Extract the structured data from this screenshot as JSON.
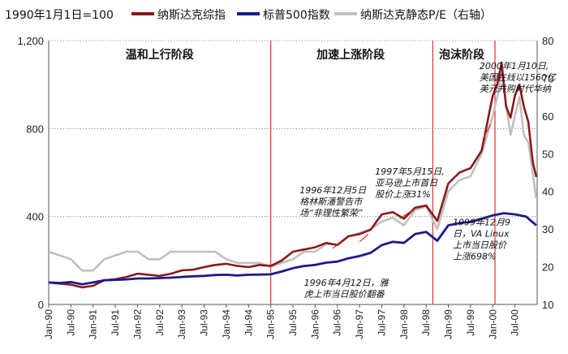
{
  "chart_data": {
    "type": "line",
    "legend": {
      "base_note": "1990年1月1日=100",
      "items": [
        "纳斯达克综指",
        "标普500指数",
        "纳斯达克静态P/E（右轴）"
      ]
    },
    "colors": {
      "nasdaq": "#8b1a1a",
      "sp500": "#1c1c8c",
      "pe": "#c0c0c0",
      "vline": "#e03030",
      "grid": "#888888"
    },
    "y_left": {
      "min": 0,
      "max": 1200,
      "ticks": [
        "0",
        "400",
        "800",
        "1,200"
      ],
      "tick_values": [
        0,
        400,
        800,
        1200
      ]
    },
    "y_right": {
      "min": 10,
      "max": 80,
      "ticks": [
        "10",
        "20",
        "30",
        "40",
        "50",
        "60",
        "70",
        "80"
      ],
      "tick_values": [
        10,
        20,
        30,
        40,
        50,
        60,
        70,
        80
      ]
    },
    "x_range": [
      1990.0,
      2001.0
    ],
    "x_ticks": [
      "Jan-90",
      "Jul-90",
      "Jan-91",
      "Jul-91",
      "Jan-92",
      "Jul-92",
      "Jan-93",
      "Jul-93",
      "Jan-94",
      "Jul-94",
      "Jan-95",
      "Jul-95",
      "Jan-96",
      "Jul-96",
      "Jan-97",
      "Jul-97",
      "Jan-98",
      "Jul-98",
      "Jan-99",
      "Jul-99",
      "Jan-00",
      "Jul-00"
    ],
    "x_tick_values": [
      1990.0,
      1990.5,
      1991.0,
      1991.5,
      1992.0,
      1992.5,
      1993.0,
      1993.5,
      1994.0,
      1994.5,
      1995.0,
      1995.5,
      1996.0,
      1996.5,
      1997.0,
      1997.5,
      1998.0,
      1998.5,
      1999.0,
      1999.5,
      2000.0,
      2000.5
    ],
    "phases": [
      {
        "label": "温和上行阶段",
        "x": 1992.5
      },
      {
        "label": "加速上涨阶段",
        "x": 1996.8
      },
      {
        "label": "泡沫阶段",
        "x": 1999.3
      }
    ],
    "phase_dividers": [
      1995.0,
      1998.65
    ],
    "event_line": 2000.05,
    "annotations": [
      {
        "lines": [
          "2000年1月10日,",
          "美国在线以1560亿",
          "美元并购时代华纳"
        ],
        "x": 1999.7,
        "y": 1070
      },
      {
        "lines": [
          "1997年5月15日,",
          "亚马逊上市首日",
          "股价上涨31%"
        ],
        "x": 1997.35,
        "y": 590
      },
      {
        "lines": [
          "1996年12月5日",
          "格林斯潘警告市",
          "场“非理性繁荣”"
        ],
        "x": 1995.65,
        "y": 505
      },
      {
        "lines": [
          "1996年4月12日，雅",
          "虎上市当日股价翻番"
        ],
        "x": 1995.75,
        "y": 85
      },
      {
        "lines": [
          "1999年12月9",
          "日，VA Linux",
          "上市当日股价",
          "上涨698%"
        ],
        "x": 1999.1,
        "y": 360
      }
    ],
    "series": [
      {
        "name": "纳斯达克综指",
        "axis": "left",
        "x": [
          1990.0,
          1990.25,
          1990.5,
          1990.75,
          1991.0,
          1991.25,
          1991.5,
          1991.75,
          1992.0,
          1992.25,
          1992.5,
          1992.75,
          1993.0,
          1993.25,
          1993.5,
          1993.75,
          1994.0,
          1994.25,
          1994.5,
          1994.75,
          1995.0,
          1995.25,
          1995.5,
          1995.75,
          1996.0,
          1996.25,
          1996.5,
          1996.75,
          1997.0,
          1997.25,
          1997.5,
          1997.75,
          1998.0,
          1998.25,
          1998.5,
          1998.75,
          1999.0,
          1999.25,
          1999.5,
          1999.75,
          2000.0,
          2000.1,
          2000.2,
          2000.3,
          2000.4,
          2000.5,
          2000.6,
          2000.7,
          2000.8,
          2000.9,
          2000.98
        ],
        "values": [
          100,
          95,
          90,
          78,
          85,
          110,
          115,
          125,
          140,
          135,
          130,
          140,
          155,
          158,
          170,
          180,
          185,
          175,
          170,
          180,
          175,
          200,
          240,
          250,
          260,
          280,
          270,
          310,
          320,
          340,
          410,
          420,
          390,
          440,
          450,
          380,
          550,
          600,
          620,
          700,
          950,
          1000,
          1100,
          900,
          850,
          950,
          1000,
          900,
          830,
          650,
          580
        ]
      },
      {
        "name": "标普500指数",
        "axis": "left",
        "x": [
          1990.0,
          1990.25,
          1990.5,
          1990.75,
          1991.0,
          1991.25,
          1991.5,
          1991.75,
          1992.0,
          1992.25,
          1992.5,
          1992.75,
          1993.0,
          1993.25,
          1993.5,
          1993.75,
          1994.0,
          1994.25,
          1994.5,
          1994.75,
          1995.0,
          1995.25,
          1995.5,
          1995.75,
          1996.0,
          1996.25,
          1996.5,
          1996.75,
          1997.0,
          1997.25,
          1997.5,
          1997.75,
          1998.0,
          1998.25,
          1998.5,
          1998.75,
          1999.0,
          1999.25,
          1999.5,
          1999.75,
          2000.0,
          2000.25,
          2000.5,
          2000.75,
          2000.98
        ],
        "values": [
          100,
          98,
          102,
          92,
          100,
          110,
          112,
          114,
          118,
          118,
          120,
          122,
          125,
          128,
          130,
          134,
          135,
          132,
          135,
          136,
          137,
          150,
          165,
          175,
          180,
          190,
          195,
          210,
          220,
          235,
          270,
          285,
          280,
          320,
          330,
          290,
          360,
          370,
          375,
          390,
          405,
          415,
          410,
          400,
          360
        ]
      },
      {
        "name": "纳斯达克静态P/E（右轴）",
        "axis": "right",
        "x": [
          1990.0,
          1990.25,
          1990.5,
          1990.75,
          1991.0,
          1991.25,
          1991.5,
          1991.75,
          1992.0,
          1992.25,
          1992.5,
          1992.75,
          1993.0,
          1993.25,
          1993.5,
          1993.75,
          1994.0,
          1994.25,
          1994.5,
          1994.75,
          1995.0,
          1995.25,
          1995.5,
          1995.75,
          1996.0,
          1996.25,
          1996.5,
          1996.75,
          1997.0,
          1997.25,
          1997.5,
          1997.75,
          1998.0,
          1998.25,
          1998.5,
          1998.75,
          1999.0,
          1999.25,
          1999.5,
          1999.75,
          2000.0,
          2000.1,
          2000.2,
          2000.3,
          2000.4,
          2000.5,
          2000.6,
          2000.7,
          2000.8,
          2000.9,
          2000.98
        ],
        "values": [
          24,
          23,
          22,
          19,
          19,
          22,
          23,
          24,
          24,
          22,
          22,
          24,
          24,
          24,
          24,
          24,
          22,
          21,
          21,
          21,
          20,
          21,
          22,
          24,
          24,
          26,
          26,
          28,
          29,
          30,
          32,
          33,
          31,
          35,
          36,
          30,
          40,
          43,
          44,
          50,
          60,
          65,
          72,
          63,
          55,
          60,
          65,
          55,
          53,
          45,
          38
        ]
      }
    ]
  }
}
